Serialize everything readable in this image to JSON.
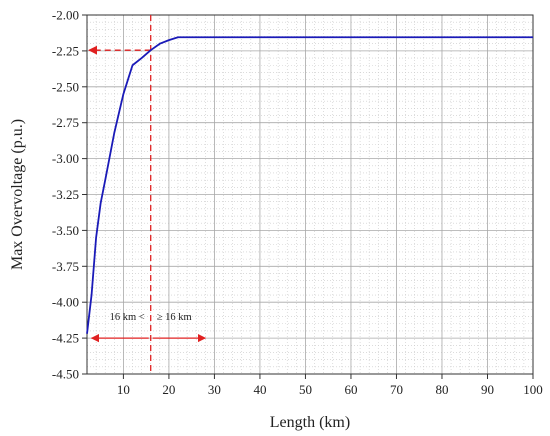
{
  "chart_data": {
    "type": "line",
    "xlabel": "Length (km)",
    "ylabel": "Max Overvoltage (p.u.)",
    "xlim": [
      2,
      100
    ],
    "ylim": [
      -4.5,
      -2.0
    ],
    "xticks": [
      10,
      20,
      30,
      40,
      50,
      60,
      70,
      80,
      90,
      100
    ],
    "yticks": [
      -2.0,
      -2.25,
      -2.5,
      -2.75,
      -3.0,
      -3.25,
      -3.5,
      -3.75,
      -4.0,
      -4.25,
      -4.5
    ],
    "ytick_labels": [
      "-2.00",
      "-2.25",
      "-2.50",
      "-2.75",
      "-3.00",
      "-3.25",
      "-3.50",
      "-3.75",
      "-4.00",
      "-4.25",
      "-4.50"
    ],
    "grid": true,
    "minor_grid": true,
    "line_color": "#1a1ab8",
    "annotation_color": "#e02020",
    "series": [
      {
        "x": [
          2,
          3,
          4,
          5,
          6,
          8,
          10,
          12,
          14,
          16,
          18,
          20,
          22,
          24,
          30,
          40,
          50,
          60,
          70,
          80,
          90,
          100
        ],
        "y": [
          -4.22,
          -3.95,
          -3.55,
          -3.31,
          -3.15,
          -2.82,
          -2.55,
          -2.35,
          -2.3,
          -2.245,
          -2.2,
          -2.175,
          -2.155,
          -2.155,
          -2.155,
          -2.155,
          -2.155,
          -2.155,
          -2.155,
          -2.155,
          -2.155,
          -2.155
        ]
      }
    ],
    "reference_lines": {
      "vertical_x": 16,
      "horizontal_y": -2.245
    },
    "annotations": {
      "left_text": "16 km <",
      "right_text": "≥ 16 km",
      "arrow_y": -4.25,
      "left_arrow_x": [
        16,
        3
      ],
      "right_arrow_x": [
        16,
        28
      ]
    }
  }
}
